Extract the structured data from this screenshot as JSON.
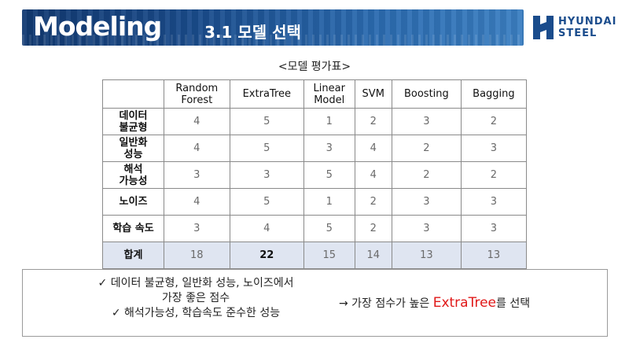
{
  "header": {
    "title": "Modeling",
    "subtitle": "3.1 모델 선택"
  },
  "logo": {
    "line1": "HYUNDAI",
    "line2": "STEEL",
    "brand_color": "#1a4c8c"
  },
  "table": {
    "caption": "<모델 평가표>",
    "columns": [
      {
        "line1": "Random",
        "line2": "Forest"
      },
      {
        "line1": "ExtraTree",
        "line2": ""
      },
      {
        "line1": "Linear",
        "line2": "Model"
      },
      {
        "line1": "SVM",
        "line2": ""
      },
      {
        "line1": "Boosting",
        "line2": ""
      },
      {
        "line1": "Bagging",
        "line2": ""
      }
    ],
    "rows": [
      {
        "label1": "데이터",
        "label2": "불균형",
        "values": [
          "4",
          "5",
          "1",
          "2",
          "3",
          "2"
        ]
      },
      {
        "label1": "일반화",
        "label2": "성능",
        "values": [
          "4",
          "5",
          "3",
          "4",
          "2",
          "3"
        ]
      },
      {
        "label1": "해석",
        "label2": "가능성",
        "values": [
          "3",
          "3",
          "5",
          "4",
          "2",
          "2"
        ]
      },
      {
        "label1": "노이즈",
        "label2": "",
        "values": [
          "4",
          "5",
          "1",
          "2",
          "3",
          "3"
        ]
      },
      {
        "label1": "학습 속도",
        "label2": "",
        "values": [
          "3",
          "4",
          "5",
          "2",
          "3",
          "3"
        ]
      }
    ],
    "total": {
      "label": "합계",
      "values": [
        "18",
        "22",
        "15",
        "14",
        "13",
        "13"
      ]
    }
  },
  "summary": {
    "left_line1": "✓ 데이터 불균형, 일반화 성능, 노이즈에서",
    "left_line2": "가장 좋은 점수",
    "left_line3": "✓ 해석가능성, 학습속도 준수한 성능",
    "right_prefix": "→ 가장 점수가 높은 ",
    "right_highlight": "ExtraTree",
    "right_suffix": "를 선택",
    "highlight_color": "#e01818"
  }
}
